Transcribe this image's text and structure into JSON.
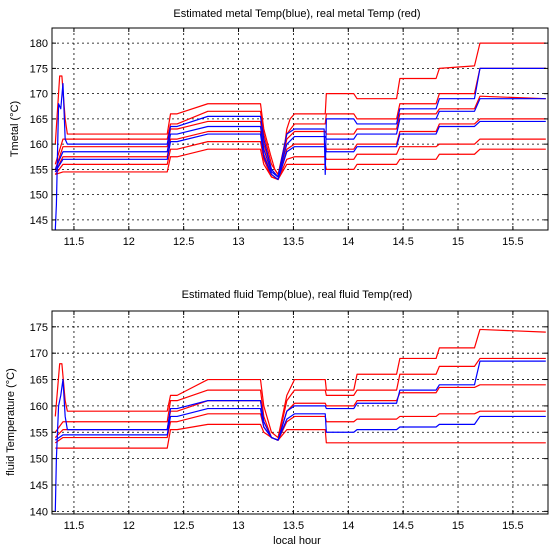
{
  "figure": {
    "background": "#ffffff"
  },
  "chart_data": [
    {
      "type": "line",
      "title": "Estimated metal Temp(blue), real metal Temp (red)",
      "xlabel": "",
      "ylabel": "Tmetal (°C)",
      "xlim": [
        11.3,
        15.82
      ],
      "ylim": [
        143,
        183
      ],
      "xticks": [
        11.5,
        12,
        12.5,
        13,
        13.5,
        14,
        14.5,
        15,
        15.5
      ],
      "yticks": [
        145,
        150,
        155,
        160,
        165,
        170,
        175,
        180
      ],
      "grid": true,
      "series": [
        {
          "color": "#ff0000",
          "x": [
            11.33,
            11.37,
            11.39,
            11.42,
            11.44,
            12.35,
            12.38,
            12.44,
            12.72,
            12.75,
            13.2,
            13.23,
            13.29,
            13.33,
            13.36,
            13.39,
            13.44,
            13.47,
            13.51,
            13.79,
            13.8,
            14.05,
            14.08,
            14.44,
            14.47,
            14.8,
            14.83,
            15.15,
            15.2,
            15.8
          ],
          "y": [
            160,
            173.5,
            173.5,
            165,
            162,
            162,
            166,
            166,
            168,
            168,
            168,
            163,
            158,
            155,
            154,
            155,
            163,
            165,
            166,
            166,
            170,
            170,
            169,
            169,
            173,
            173,
            175,
            175.5,
            180,
            180
          ]
        },
        {
          "color": "#ff0000",
          "x": [
            11.33,
            11.4,
            11.44,
            12.35,
            12.38,
            12.44,
            12.72,
            12.75,
            13.2,
            13.23,
            13.3,
            13.36,
            13.44,
            13.51,
            13.79,
            13.8,
            14.05,
            14.08,
            14.44,
            14.47,
            14.8,
            14.83,
            15.15,
            15.2,
            15.8
          ],
          "y": [
            156,
            161,
            161,
            161,
            164,
            164,
            166.5,
            166.5,
            166.5,
            162,
            156,
            154,
            162,
            164,
            164,
            166,
            166,
            165,
            165,
            168,
            168,
            170,
            170,
            175,
            175
          ]
        },
        {
          "color": "#ff0000",
          "x": [
            11.33,
            11.4,
            11.44,
            12.35,
            12.38,
            12.44,
            12.72,
            12.75,
            13.2,
            13.23,
            13.3,
            13.36,
            13.44,
            13.51,
            13.79,
            13.8,
            14.05,
            14.08,
            14.44,
            14.47,
            14.8,
            14.83,
            15.15,
            15.2,
            15.8
          ],
          "y": [
            155,
            159.5,
            159.5,
            159.5,
            163,
            163,
            164.5,
            164.5,
            164.5,
            160,
            155,
            153.5,
            161,
            162.5,
            162.5,
            162,
            162,
            163,
            163,
            166,
            166,
            167,
            167,
            169.5,
            169
          ]
        },
        {
          "color": "#ff0000",
          "x": [
            11.33,
            11.4,
            11.44,
            12.35,
            12.38,
            12.44,
            12.72,
            12.75,
            13.2,
            13.23,
            13.3,
            13.36,
            13.44,
            13.51,
            13.79,
            13.8,
            14.05,
            14.08,
            14.44,
            14.47,
            14.8,
            14.83,
            15.15,
            15.2,
            15.8
          ],
          "y": [
            154.5,
            157.5,
            157.5,
            157.5,
            161,
            161,
            162.5,
            162.5,
            162.5,
            158,
            154,
            153,
            159,
            160,
            160,
            159,
            159,
            160,
            160,
            162.5,
            162.5,
            164,
            164,
            165,
            165
          ]
        },
        {
          "color": "#ff0000",
          "x": [
            11.33,
            11.4,
            11.44,
            12.35,
            12.38,
            12.44,
            12.72,
            12.75,
            13.2,
            13.23,
            13.3,
            13.36,
            13.44,
            13.51,
            13.79,
            13.8,
            14.05,
            14.08,
            14.44,
            14.47,
            14.8,
            14.83,
            15.15,
            15.2,
            15.8
          ],
          "y": [
            154,
            156,
            156,
            156,
            159,
            159,
            160.5,
            160.5,
            160.5,
            157,
            153.5,
            153,
            157,
            157.5,
            157.5,
            157,
            157,
            158,
            158,
            159.5,
            159.5,
            160,
            160,
            161,
            161
          ]
        },
        {
          "color": "#ff0000",
          "x": [
            11.33,
            11.4,
            11.44,
            12.35,
            12.38,
            12.44,
            12.72,
            12.75,
            13.2,
            13.23,
            13.3,
            13.36,
            13.44,
            13.51,
            13.79,
            13.8,
            14.05,
            14.08,
            14.44,
            14.47,
            14.8,
            14.83,
            15.15,
            15.2,
            15.8
          ],
          "y": [
            154,
            154.5,
            154.5,
            154.5,
            157.5,
            157.5,
            159,
            159,
            159,
            156,
            153.5,
            153,
            156,
            156,
            156,
            155,
            155,
            156,
            156,
            157,
            157,
            158,
            158,
            159,
            159
          ]
        },
        {
          "color": "#0000ff",
          "x": [
            11.33,
            11.34,
            11.36,
            11.38,
            11.4,
            11.42,
            11.44,
            11.5,
            12.35,
            12.38,
            12.44,
            12.72,
            12.75,
            13.2,
            13.23,
            13.3,
            13.36,
            13.44,
            13.51,
            13.78,
            13.79,
            13.8,
            14.05,
            14.08,
            14.44,
            14.47,
            14.8,
            14.83,
            15.15,
            15.2,
            15.8
          ],
          "y": [
            143,
            148,
            168,
            167,
            172,
            161,
            160,
            160,
            160,
            163.5,
            163.5,
            165.5,
            165.5,
            165.5,
            161,
            155,
            153.5,
            162,
            163,
            163,
            154,
            165,
            165,
            164,
            164,
            167,
            167,
            169,
            169,
            175,
            175
          ]
        },
        {
          "color": "#0000ff",
          "x": [
            11.33,
            11.4,
            11.44,
            12.35,
            12.38,
            12.44,
            12.72,
            12.75,
            13.2,
            13.23,
            13.3,
            13.36,
            13.44,
            13.51,
            13.79,
            13.8,
            14.05,
            14.08,
            14.44,
            14.47,
            14.8,
            14.83,
            15.15,
            15.2,
            15.8
          ],
          "y": [
            155,
            158.5,
            158.5,
            158.5,
            162,
            162,
            163.5,
            163.5,
            163.5,
            159,
            154.5,
            153.5,
            160,
            161.5,
            161.5,
            161,
            161,
            162,
            162,
            165,
            165,
            166.5,
            166.5,
            169,
            169
          ]
        },
        {
          "color": "#0000ff",
          "x": [
            11.33,
            11.4,
            11.44,
            12.35,
            12.38,
            12.44,
            12.72,
            12.75,
            13.2,
            13.23,
            13.3,
            13.36,
            13.44,
            13.51,
            13.79,
            13.8,
            14.05,
            14.08,
            14.44,
            14.47,
            14.8,
            14.83,
            15.15,
            15.2,
            15.8
          ],
          "y": [
            154.5,
            157,
            157,
            157,
            160.5,
            160.5,
            162,
            162,
            162,
            157.5,
            154,
            153,
            158.5,
            159.5,
            159.5,
            158.5,
            158.5,
            159.5,
            159.5,
            162,
            162,
            163.5,
            163.5,
            164.5,
            164.5
          ]
        }
      ]
    },
    {
      "type": "line",
      "title": "Estimated fluid Temp(blue), real fluid Temp(red)",
      "xlabel": "local hour",
      "ylabel": "fluid Temperature (°C)",
      "xlim": [
        11.3,
        15.82
      ],
      "ylim": [
        139.5,
        178
      ],
      "xticks": [
        11.5,
        12,
        12.5,
        13,
        13.5,
        14,
        14.5,
        15,
        15.5
      ],
      "yticks": [
        140,
        145,
        150,
        155,
        160,
        165,
        170,
        175
      ],
      "grid": true,
      "series": [
        {
          "color": "#ff0000",
          "x": [
            11.33,
            11.37,
            11.39,
            11.42,
            11.44,
            12.35,
            12.38,
            12.44,
            12.72,
            12.75,
            13.2,
            13.23,
            13.3,
            13.36,
            13.44,
            13.51,
            13.79,
            13.8,
            14.05,
            14.08,
            14.44,
            14.47,
            14.8,
            14.83,
            15.15,
            15.2,
            15.8
          ],
          "y": [
            158,
            168,
            168,
            161,
            159,
            159,
            162,
            162,
            165,
            165,
            165,
            160,
            155,
            154,
            162,
            165,
            165,
            163,
            163,
            166,
            166,
            169,
            169,
            171,
            171,
            174.5,
            174
          ]
        },
        {
          "color": "#ff0000",
          "x": [
            11.33,
            11.4,
            11.44,
            12.35,
            12.38,
            12.44,
            12.72,
            12.75,
            13.2,
            13.23,
            13.3,
            13.36,
            13.44,
            13.51,
            13.79,
            13.8,
            14.05,
            14.08,
            14.44,
            14.47,
            14.8,
            14.83,
            15.15,
            15.2,
            15.8
          ],
          "y": [
            155,
            157,
            157,
            157,
            161,
            161,
            163,
            163,
            163,
            158,
            154,
            153.5,
            161,
            163,
            163,
            162,
            162,
            163,
            163,
            166,
            166,
            167.5,
            167.5,
            169,
            169
          ]
        },
        {
          "color": "#ff0000",
          "x": [
            11.33,
            11.4,
            11.44,
            12.35,
            12.38,
            12.44,
            12.72,
            12.75,
            13.2,
            13.23,
            13.3,
            13.36,
            13.44,
            13.51,
            13.79,
            13.8,
            14.05,
            14.08,
            14.44,
            14.47,
            14.8,
            14.83,
            15.15,
            15.2,
            15.8
          ],
          "y": [
            154,
            155.5,
            155.5,
            155.5,
            159,
            159,
            161,
            161,
            161,
            157,
            154,
            153.5,
            159,
            160.5,
            160.5,
            160,
            160,
            161,
            161,
            162.5,
            162.5,
            163.5,
            163.5,
            164,
            164
          ]
        },
        {
          "color": "#ff0000",
          "x": [
            11.33,
            11.4,
            11.44,
            12.35,
            12.38,
            12.44,
            12.72,
            12.75,
            13.2,
            13.23,
            13.3,
            13.36,
            13.44,
            13.51,
            13.79,
            13.8,
            14.05,
            14.08,
            14.44,
            14.47,
            14.8,
            14.83,
            15.15,
            15.2,
            15.8
          ],
          "y": [
            153,
            154,
            154,
            154,
            157,
            157,
            158.5,
            158.5,
            158.5,
            156,
            154,
            153.5,
            157,
            158,
            158,
            157,
            157,
            157.5,
            157.5,
            158,
            158,
            158.5,
            158.5,
            159,
            159
          ]
        },
        {
          "color": "#ff0000",
          "x": [
            11.33,
            11.4,
            11.44,
            12.35,
            12.38,
            12.44,
            12.72,
            12.75,
            13.2,
            13.23,
            13.3,
            13.36,
            13.44,
            13.51,
            13.79,
            13.8,
            14.05,
            14.08,
            14.44,
            14.47,
            14.8,
            14.83,
            15.15,
            15.2,
            15.8
          ],
          "y": [
            152,
            152,
            152,
            152,
            155.5,
            155.5,
            156.5,
            156.5,
            156.5,
            155,
            154,
            153.5,
            155.5,
            155.5,
            155.5,
            153,
            153,
            153,
            153,
            153,
            153,
            153,
            153,
            153,
            153
          ]
        },
        {
          "color": "#0000ff",
          "x": [
            11.33,
            11.34,
            11.36,
            11.38,
            11.4,
            11.42,
            11.44,
            11.5,
            12.35,
            12.38,
            12.44,
            12.72,
            12.75,
            13.2,
            13.23,
            13.3,
            13.36,
            13.44,
            13.51,
            13.79,
            13.8,
            14.05,
            14.08,
            14.44,
            14.47,
            14.8,
            14.83,
            15.15,
            15.2,
            15.8
          ],
          "y": [
            140,
            150,
            160,
            162,
            165,
            158,
            155.5,
            155.5,
            155.5,
            159.5,
            159.5,
            161,
            161,
            161,
            157,
            154,
            153.5,
            159,
            160,
            160,
            159.5,
            159.5,
            160.5,
            160.5,
            163,
            163,
            164,
            164,
            168.5,
            168.5
          ]
        },
        {
          "color": "#0000ff",
          "x": [
            11.33,
            11.4,
            11.44,
            12.35,
            12.38,
            12.44,
            12.72,
            12.75,
            13.2,
            13.23,
            13.3,
            13.36,
            13.44,
            13.51,
            13.79,
            13.8,
            14.05,
            14.08,
            14.44,
            14.47,
            14.8,
            14.83,
            15.15,
            15.2,
            15.8
          ],
          "y": [
            153.5,
            154.5,
            154.5,
            154.5,
            158,
            158,
            159.5,
            159.5,
            159.5,
            156,
            154,
            153.5,
            157.5,
            158.5,
            158.5,
            155,
            155,
            155.5,
            155.5,
            156,
            156,
            156.5,
            156.5,
            158,
            158
          ]
        }
      ]
    }
  ]
}
